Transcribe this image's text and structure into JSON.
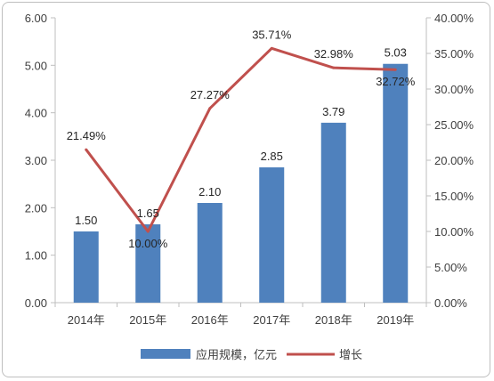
{
  "chart_data": {
    "type": "bar",
    "categories": [
      "2014年",
      "2015年",
      "2016年",
      "2017年",
      "2018年",
      "2019年"
    ],
    "series": [
      {
        "name": "应用规模，亿元",
        "type": "bar",
        "axis": "left",
        "values": [
          1.5,
          1.65,
          2.1,
          2.85,
          3.79,
          5.03
        ],
        "labels": [
          "1.50",
          "1.65",
          "2.10",
          "2.85",
          "3.79",
          "5.03"
        ],
        "color": "#4f81bd"
      },
      {
        "name": "增长",
        "type": "line",
        "axis": "right",
        "values": [
          21.49,
          10.0,
          27.27,
          35.71,
          32.98,
          32.72
        ],
        "labels": [
          "21.49%",
          "10.00%",
          "27.27%",
          "35.71%",
          "32.98%",
          "32.72%"
        ],
        "color": "#c0504d"
      }
    ],
    "left_axis": {
      "ylim": [
        0,
        6
      ],
      "ticks": [
        "0.00",
        "1.00",
        "2.00",
        "3.00",
        "4.00",
        "5.00",
        "6.00"
      ]
    },
    "right_axis": {
      "ylim": [
        0,
        40
      ],
      "ticks": [
        "0.00%",
        "5.00%",
        "10.00%",
        "15.00%",
        "20.00%",
        "25.00%",
        "30.00%",
        "35.00%",
        "40.00%"
      ]
    },
    "grid": false,
    "legend": "bottom"
  }
}
